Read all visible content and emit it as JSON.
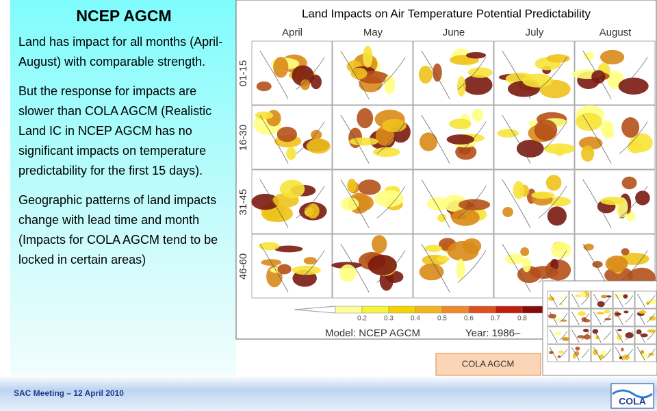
{
  "slide": {
    "title": "NCEP AGCM",
    "paragraphs": [
      "Land has impact for all months (April-August) with comparable strength.",
      "But the response for impacts are slower than COLA AGCM (Realistic Land IC in NCEP AGCM has no significant impacts on temperature predictability for the first 15 days).",
      "Geographic patterns of  land impacts change with lead time and month (Impacts for COLA AGCM tend to be locked in certain areas)"
    ],
    "figure": {
      "title": "Land Impacts on Air Temperature Potential Predictability",
      "months": [
        "April",
        "May",
        "June",
        "July",
        "August"
      ],
      "leads": [
        "01-15",
        "16-30",
        "31-45",
        "46-60"
      ],
      "colorbar_labels": [
        "0.2",
        "0.3",
        "0.4",
        "0.5",
        "0.6",
        "0.7",
        "0.8"
      ],
      "model_label": "Model: NCEP AGCM",
      "year_label": "Year: 1986–"
    },
    "callout": "COLA AGCM",
    "footer": "SAC Meeting – 12 April 2010",
    "logo": "COLA"
  }
}
